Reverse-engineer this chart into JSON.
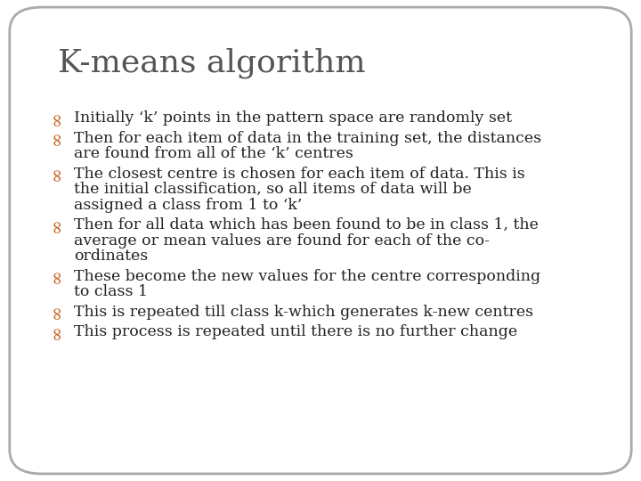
{
  "title": "K-means algorithm",
  "title_color": "#555555",
  "title_fontsize": 26,
  "bullet_color": "#c86020",
  "text_color": "#222222",
  "bg_color": "#ffffff",
  "border_color": "#aaaaaa",
  "body_fontsize": 12.5,
  "bullets": [
    {
      "lines": [
        "Initially ‘k’ points in the pattern space are randomly set"
      ]
    },
    {
      "lines": [
        "Then for each item of data in the training set, the distances",
        "are found from all of the ‘k’ centres"
      ]
    },
    {
      "lines": [
        "The closest centre is chosen for each item of data. This is",
        "the initial classification, so all items of data will be",
        "assigned a class from 1 to ‘k’"
      ]
    },
    {
      "lines": [
        "Then for all data which has been found to be in class 1, the",
        "average or mean values are found for each of the co-",
        "ordinates"
      ]
    },
    {
      "lines": [
        "These become the new values for the centre corresponding",
        "to class 1"
      ]
    },
    {
      "lines": [
        "This is repeated till class k-which generates k-new centres"
      ]
    },
    {
      "lines": [
        "This process is repeated until there is no further change"
      ]
    }
  ],
  "figwidth": 7.2,
  "figheight": 5.4,
  "dpi": 100
}
